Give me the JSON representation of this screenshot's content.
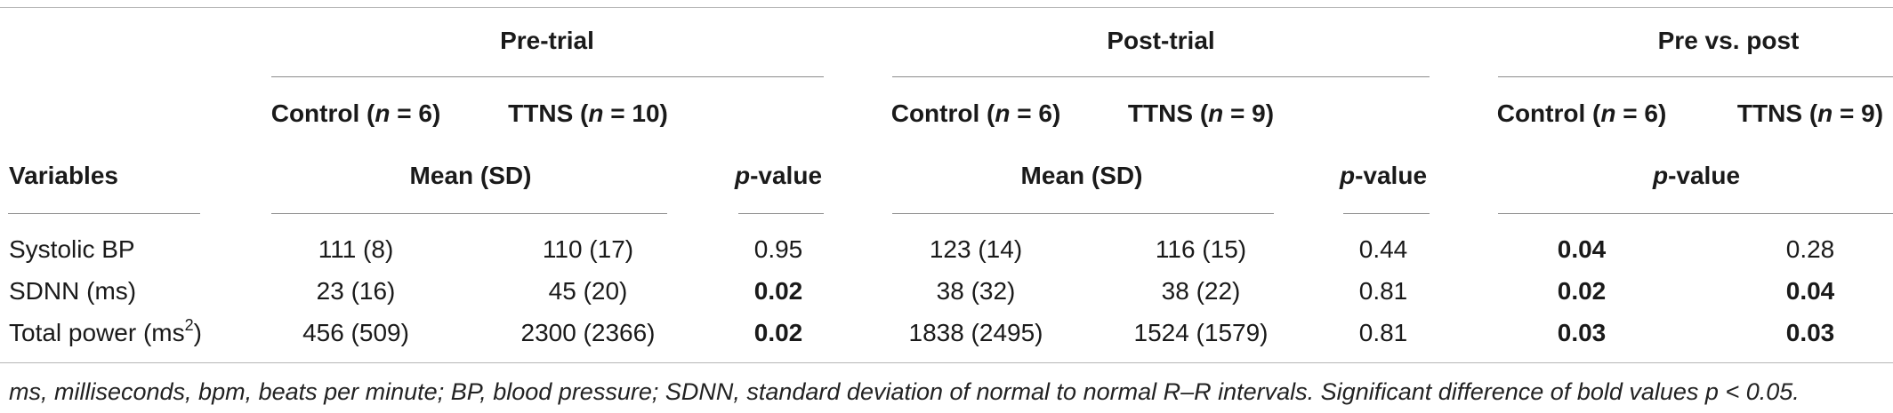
{
  "table": {
    "groups": {
      "pre": "Pre-trial",
      "post": "Post-trial",
      "prepost": "Pre vs. post"
    },
    "subheads": {
      "control_word": "Control (",
      "ttns_word": "TTNS (",
      "n_letter": "n",
      "pre_control_n": " = 6)",
      "pre_ttns_n": " = 10)",
      "post_control_n": " = 6)",
      "post_ttns_n": " = 9)",
      "pp_control_n": " = 6)",
      "pp_ttns_n": " = 9)"
    },
    "headers": {
      "variables": "Variables",
      "mean_sd": "Mean (SD)",
      "p_letter": "p",
      "p_rest": "-value"
    },
    "rows": [
      {
        "variable": "Systolic BP",
        "pre_control": "111 (8)",
        "pre_ttns": "110 (17)",
        "pre_p": "0.95",
        "post_control": "123 (14)",
        "post_ttns": "116 (15)",
        "post_p": "0.44",
        "pp_control": "0.04",
        "pp_ttns": "0.28"
      },
      {
        "variable": "SDNN (ms)",
        "pre_control": "23 (16)",
        "pre_ttns": "45 (20)",
        "pre_p": "0.02",
        "post_control": "38 (32)",
        "post_ttns": "38 (22)",
        "post_p": "0.81",
        "pp_control": "0.02",
        "pp_ttns": "0.04"
      },
      {
        "variable": "Total power (ms",
        "variable_sup": "2",
        "variable_end": ")",
        "pre_control": "456 (509)",
        "pre_ttns": "2300 (2366)",
        "pre_p": "0.02",
        "post_control": "1838 (2495)",
        "post_ttns": "1524 (1579)",
        "post_p": "0.81",
        "pp_control": "0.03",
        "pp_ttns": "0.03"
      }
    ],
    "footnote": "ms, milliseconds, bpm, beats per minute; BP, blood pressure; SDNN, standard deviation of normal to normal R–R intervals. Significant difference of bold values p < 0.05."
  }
}
